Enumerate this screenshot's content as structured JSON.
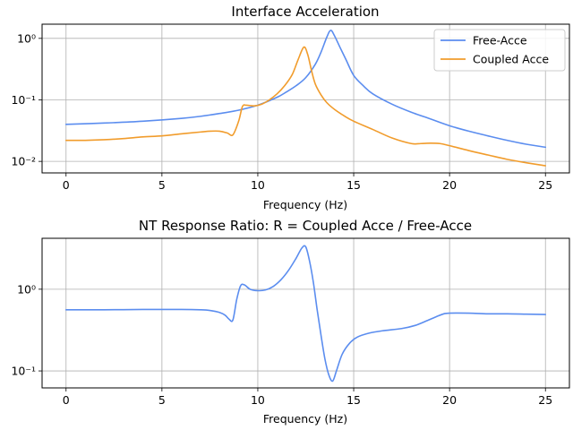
{
  "chart_data": [
    {
      "type": "line",
      "title": "Interface Acceleration",
      "xlabel": "Frequency (Hz)",
      "ylabel": "",
      "xlim": [
        -1.25,
        26.25
      ],
      "ylim": [
        0.0065,
        1.7
      ],
      "yscale": "log",
      "xticks": [
        0,
        5,
        10,
        15,
        20,
        25
      ],
      "yticks": [
        0.01,
        0.1,
        1
      ],
      "ytick_labels": [
        "10⁻²",
        "10⁻¹",
        "10⁰"
      ],
      "grid": true,
      "legend": "top-right",
      "series": [
        {
          "name": "Free-Acce",
          "color": "#5b8def",
          "x": [
            0,
            2,
            4,
            6,
            7,
            8,
            9,
            10,
            11,
            11.5,
            12,
            12.5,
            13,
            13.3,
            13.6,
            13.8,
            14.0,
            14.3,
            14.6,
            15,
            15.5,
            16,
            17,
            18,
            19,
            20,
            21,
            22,
            23,
            24,
            25
          ],
          "y": [
            0.04,
            0.042,
            0.045,
            0.05,
            0.054,
            0.06,
            0.068,
            0.082,
            0.11,
            0.135,
            0.17,
            0.23,
            0.38,
            0.6,
            1.05,
            1.35,
            1.1,
            0.7,
            0.45,
            0.25,
            0.17,
            0.125,
            0.085,
            0.063,
            0.049,
            0.038,
            0.031,
            0.026,
            0.022,
            0.019,
            0.017
          ]
        },
        {
          "name": "Coupled Acce",
          "color": "#f19c2c",
          "x": [
            0,
            1,
            2,
            3,
            4,
            5,
            6,
            7,
            7.5,
            8,
            8.4,
            8.7,
            9.0,
            9.2,
            9.4,
            9.8,
            10.2,
            10.6,
            11,
            11.4,
            11.8,
            12.1,
            12.4,
            12.6,
            12.8,
            13.0,
            13.3,
            13.6,
            14,
            14.5,
            15,
            16,
            17,
            18,
            18.5,
            19,
            19.5,
            20,
            21,
            22,
            23,
            24,
            25
          ],
          "y": [
            0.022,
            0.022,
            0.0225,
            0.0235,
            0.025,
            0.026,
            0.028,
            0.03,
            0.031,
            0.031,
            0.029,
            0.027,
            0.045,
            0.078,
            0.082,
            0.08,
            0.085,
            0.1,
            0.125,
            0.17,
            0.26,
            0.45,
            0.72,
            0.55,
            0.3,
            0.18,
            0.12,
            0.09,
            0.07,
            0.055,
            0.045,
            0.033,
            0.024,
            0.0195,
            0.0195,
            0.0198,
            0.0195,
            0.018,
            0.015,
            0.0127,
            0.0108,
            0.0095,
            0.0085
          ]
        }
      ]
    },
    {
      "type": "line",
      "title": "NT Response Ratio: R = Coupled Acce / Free-Acce",
      "xlabel": "Frequency (Hz)",
      "ylabel": "",
      "xlim": [
        -1.25,
        26.25
      ],
      "ylim": [
        0.062,
        4.2
      ],
      "yscale": "log",
      "xticks": [
        0,
        5,
        10,
        15,
        20,
        25
      ],
      "yticks": [
        0.1,
        1
      ],
      "ytick_labels": [
        "10⁻¹",
        "10⁰"
      ],
      "grid": true,
      "series": [
        {
          "color": "#5b8def",
          "x": [
            0,
            2,
            4,
            6,
            7,
            7.5,
            8,
            8.3,
            8.5,
            8.7,
            8.9,
            9.1,
            9.3,
            9.6,
            10,
            10.4,
            10.8,
            11.2,
            11.6,
            12,
            12.3,
            12.5,
            12.7,
            12.9,
            13.1,
            13.3,
            13.5,
            13.7,
            13.9,
            14.1,
            14.4,
            14.8,
            15.2,
            15.8,
            16.5,
            17.5,
            18.2,
            18.8,
            19.3,
            19.7,
            20,
            21,
            22,
            23,
            24,
            25
          ],
          "y": [
            0.56,
            0.56,
            0.565,
            0.565,
            0.56,
            0.55,
            0.52,
            0.48,
            0.43,
            0.42,
            0.75,
            1.1,
            1.13,
            1.0,
            0.96,
            0.98,
            1.08,
            1.3,
            1.7,
            2.4,
            3.2,
            3.3,
            2.2,
            1.2,
            0.55,
            0.27,
            0.14,
            0.09,
            0.075,
            0.1,
            0.16,
            0.22,
            0.26,
            0.29,
            0.31,
            0.33,
            0.36,
            0.41,
            0.46,
            0.5,
            0.51,
            0.51,
            0.5,
            0.5,
            0.495,
            0.49
          ]
        }
      ]
    }
  ]
}
